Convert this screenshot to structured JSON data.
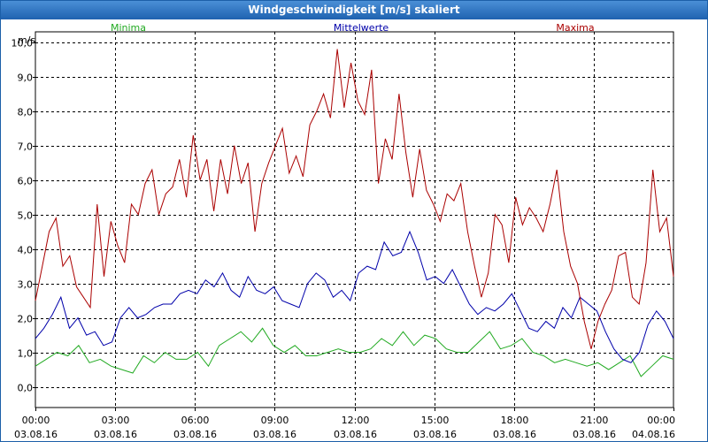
{
  "window": {
    "title": "Windgeschwindigkeit [m/s] skaliert"
  },
  "chart_data": {
    "type": "line",
    "title": "Windgeschwindigkeit [m/s] skaliert",
    "ylabel": "m/s",
    "ylim": [
      -0.6,
      10.3
    ],
    "xlim": [
      0,
      24
    ],
    "yticks": [
      0,
      1,
      2,
      3,
      4,
      5,
      6,
      7,
      8,
      9,
      10
    ],
    "ytick_labels": [
      "0,0",
      "1,0",
      "2,0",
      "3,0",
      "4,0",
      "5,0",
      "6,0",
      "7,0",
      "8,0",
      "9,0",
      "10,0"
    ],
    "xticks": [
      0,
      3,
      6,
      9,
      12,
      15,
      18,
      21,
      24
    ],
    "xtick_times": [
      "00:00",
      "03:00",
      "06:00",
      "09:00",
      "12:00",
      "15:00",
      "18:00",
      "21:00",
      "00:00"
    ],
    "xtick_dates": [
      "03.08.16",
      "03.08.16",
      "03.08.16",
      "03.08.16",
      "03.08.16",
      "03.08.16",
      "03.08.16",
      "03.08.16",
      "04.08.16"
    ],
    "grid": true,
    "legend_position": "top",
    "series": [
      {
        "name": "Minima",
        "color": "#22aa22",
        "values": [
          0.6,
          0.8,
          1.0,
          0.9,
          1.2,
          0.7,
          0.8,
          0.6,
          0.5,
          0.4,
          0.9,
          0.7,
          1.0,
          0.8,
          0.8,
          1.0,
          0.6,
          1.2,
          1.4,
          1.6,
          1.3,
          1.7,
          1.2,
          1.0,
          1.2,
          0.9,
          0.9,
          1.0,
          1.1,
          1.0,
          1.0,
          1.1,
          1.4,
          1.2,
          1.6,
          1.2,
          1.5,
          1.4,
          1.1,
          1.0,
          1.0,
          1.3,
          1.6,
          1.1,
          1.2,
          1.4,
          1.0,
          0.9,
          0.7,
          0.8,
          0.7,
          0.6,
          0.7,
          0.5,
          0.7,
          0.9,
          0.3,
          0.6,
          0.9,
          0.8
        ]
      },
      {
        "name": "Mittelwerte",
        "color": "#0000aa",
        "values": [
          1.4,
          1.7,
          2.1,
          2.6,
          1.7,
          2.0,
          1.5,
          1.6,
          1.2,
          1.3,
          2.0,
          2.3,
          2.0,
          2.1,
          2.3,
          2.4,
          2.4,
          2.7,
          2.8,
          2.7,
          3.1,
          2.9,
          3.3,
          2.8,
          2.6,
          3.2,
          2.8,
          2.7,
          2.9,
          2.5,
          2.4,
          2.3,
          3.0,
          3.3,
          3.1,
          2.6,
          2.8,
          2.5,
          3.3,
          3.5,
          3.4,
          4.2,
          3.8,
          3.9,
          4.5,
          3.9,
          3.1,
          3.2,
          3.0,
          3.4,
          2.9,
          2.4,
          2.1,
          2.3,
          2.2,
          2.4,
          2.7,
          2.2,
          1.7,
          1.6,
          1.9,
          1.7,
          2.3,
          2.0,
          2.6,
          2.4,
          2.2,
          1.6,
          1.1,
          0.8,
          0.7,
          1.0,
          1.8,
          2.2,
          1.9,
          1.4
        ]
      },
      {
        "name": "Maxima",
        "color": "#aa0000",
        "values": [
          2.5,
          3.5,
          4.5,
          4.9,
          3.5,
          3.8,
          2.9,
          2.6,
          2.3,
          5.3,
          3.2,
          4.8,
          4.1,
          3.6,
          5.3,
          5.0,
          5.9,
          6.3,
          5.0,
          5.6,
          5.8,
          6.6,
          5.5,
          7.3,
          6.0,
          6.6,
          5.1,
          6.6,
          5.6,
          7.0,
          5.9,
          6.5,
          4.5,
          5.9,
          6.5,
          7.0,
          7.5,
          6.2,
          6.7,
          6.1,
          7.6,
          8.0,
          8.5,
          7.8,
          9.8,
          8.1,
          9.4,
          8.3,
          7.9,
          9.2,
          5.9,
          7.2,
          6.6,
          8.5,
          6.8,
          5.5,
          6.9,
          5.7,
          5.3,
          4.8,
          5.6,
          5.4,
          5.9,
          4.5,
          3.5,
          2.6,
          3.3,
          5.0,
          4.7,
          3.6,
          5.5,
          4.7,
          5.2,
          4.9,
          4.5,
          5.3,
          6.3,
          4.5,
          3.5,
          3.0,
          1.9,
          1.1,
          1.9,
          2.4,
          2.8,
          3.8,
          3.9,
          2.6,
          2.4,
          3.6,
          6.3,
          4.5,
          4.9,
          3.2
        ]
      }
    ]
  }
}
